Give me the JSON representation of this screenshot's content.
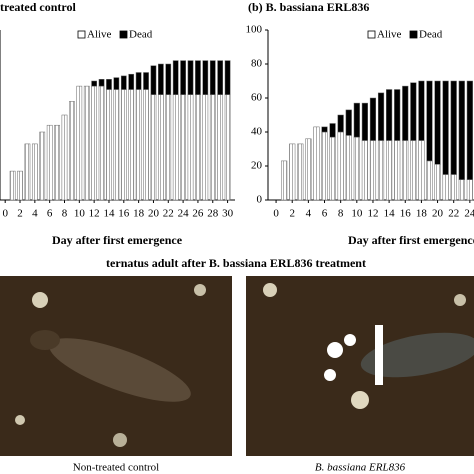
{
  "chart_data": [
    {
      "type": "stacked_bar",
      "title": "treated control",
      "x_label": "Day after first emergence",
      "x": [
        1,
        2,
        3,
        4,
        5,
        6,
        7,
        8,
        9,
        10,
        11,
        12,
        13,
        14,
        15,
        16,
        17,
        18,
        19,
        20,
        21,
        22,
        23,
        24,
        25,
        26,
        27,
        28,
        29,
        30
      ],
      "series": [
        {
          "name": "Alive",
          "color": "#ffffff",
          "values": [
            17,
            17,
            33,
            33,
            40,
            44,
            44,
            50,
            58,
            67,
            67,
            67,
            67,
            65,
            65,
            65,
            65,
            65,
            65,
            62,
            62,
            62,
            62,
            62,
            62,
            62,
            62,
            62,
            62,
            62
          ]
        },
        {
          "name": "Dead",
          "color": "#000000",
          "values": [
            0,
            0,
            0,
            0,
            0,
            0,
            0,
            0,
            0,
            0,
            0,
            3,
            4,
            6,
            7,
            8,
            9,
            10,
            10,
            17,
            18,
            18,
            20,
            20,
            20,
            20,
            20,
            20,
            20,
            20
          ]
        }
      ],
      "xlim": [
        -0.7,
        31
      ],
      "xticks": [
        0,
        2,
        4,
        6,
        8,
        10,
        12,
        14,
        16,
        18,
        20,
        22,
        24,
        26,
        28,
        30
      ],
      "ylim": [
        0,
        100
      ]
    },
    {
      "type": "stacked_bar",
      "title": "(b) B. bassiana ERL836",
      "x_label": "Day after first emergence",
      "x": [
        1,
        2,
        3,
        4,
        5,
        6,
        7,
        8,
        9,
        10,
        11,
        12,
        13,
        14,
        15,
        16,
        17,
        18,
        19,
        20,
        21,
        22,
        23,
        24
      ],
      "series": [
        {
          "name": "Alive",
          "color": "#ffffff",
          "values": [
            23,
            33,
            33,
            36,
            43,
            40,
            37,
            40,
            38,
            37,
            35,
            35,
            35,
            35,
            35,
            35,
            35,
            35,
            23,
            21,
            15,
            15,
            12,
            12
          ]
        },
        {
          "name": "Dead",
          "color": "#000000",
          "values": [
            0,
            0,
            0,
            0,
            0,
            3,
            8,
            10,
            15,
            20,
            22,
            25,
            28,
            30,
            30,
            32,
            34,
            35,
            47,
            49,
            55,
            55,
            58,
            58
          ]
        }
      ],
      "xlim": [
        -1,
        24.6
      ],
      "xticks": [
        0,
        2,
        4,
        6,
        8,
        10,
        12,
        14,
        16,
        18,
        20,
        22,
        24
      ],
      "ylim": [
        0,
        100
      ],
      "yticks": [
        0,
        20,
        40,
        60,
        80,
        100
      ]
    }
  ],
  "figure": {
    "heading": "ternatus adult after B. bassiana ERL836 treatment",
    "captions": [
      "Non-treated control",
      "B. bassiana ERL836"
    ]
  }
}
